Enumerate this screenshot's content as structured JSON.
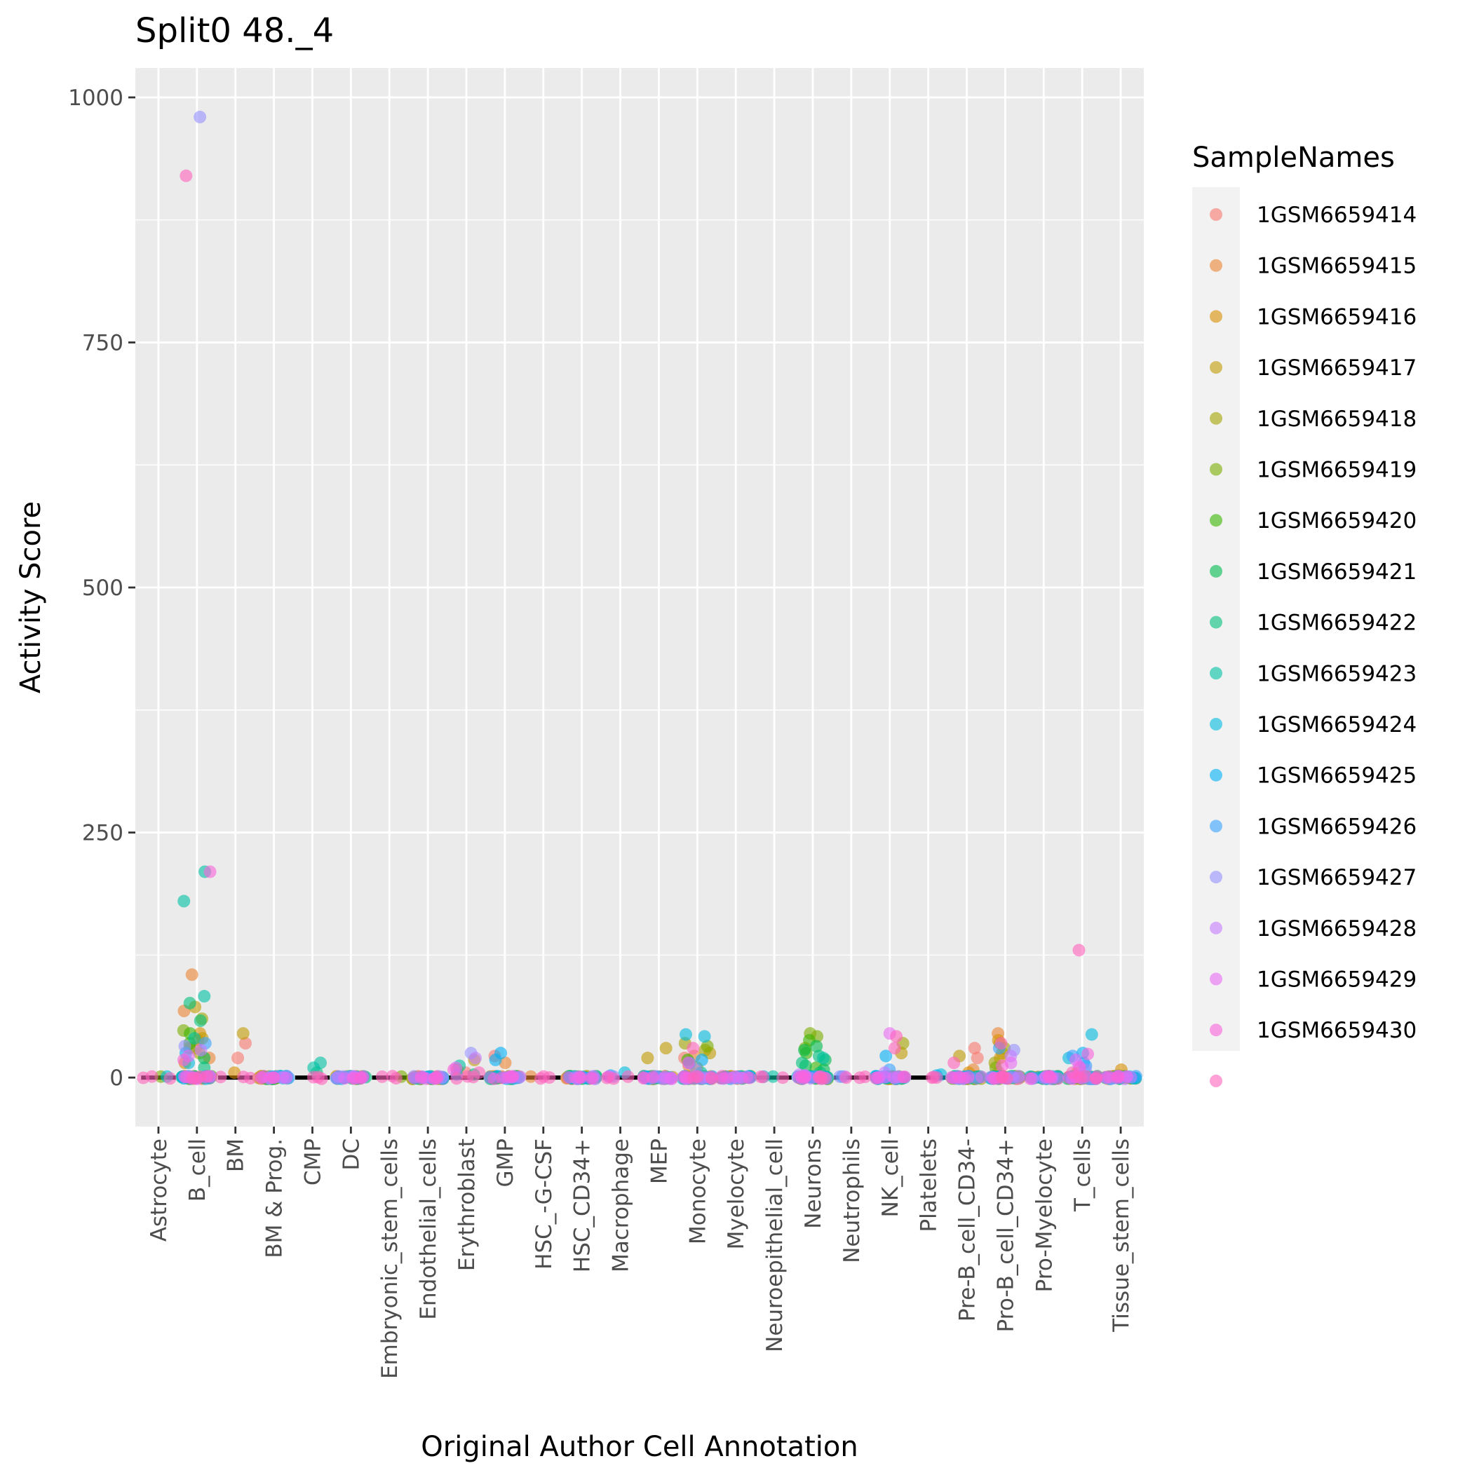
{
  "chart_data": {
    "type": "scatter",
    "title": "Split0 48._4",
    "xlabel": "Original Author Cell Annotation",
    "ylabel": "Activity Score",
    "ylim": [
      -50,
      1030
    ],
    "yticks": [
      0,
      250,
      500,
      750,
      1000
    ],
    "grid": true,
    "legend_title": "SampleNames",
    "legend_position": "right",
    "categories": [
      "Astrocyte",
      "B_cell",
      "BM",
      "BM & Prog.",
      "CMP",
      "DC",
      "Embryonic_stem_cells",
      "Endothelial_cells",
      "Erythroblast",
      "GMP",
      "HSC_-G-CSF",
      "HSC_CD34+",
      "Macrophage",
      "MEP",
      "Monocyte",
      "Myelocyte",
      "Neuroepithelial_cell",
      "Neurons",
      "Neutrophils",
      "NK_cell",
      "Platelets",
      "Pre-B_cell_CD34-",
      "Pro-B_cell_CD34+",
      "Pro-Myelocyte",
      "T_cells",
      "Tissue_stem_cells"
    ],
    "series": [
      {
        "name": "1GSM6659414",
        "color": "#F8766D",
        "points": [
          [
            "B_cell",
            30
          ],
          [
            "BM",
            35
          ],
          [
            "BM",
            20
          ],
          [
            "Erythroblast",
            5
          ],
          [
            "GMP",
            22
          ],
          [
            "Pre-B_cell_CD34-",
            30
          ],
          [
            "Pre-B_cell_CD34-",
            20
          ],
          [
            "Pro-B_cell_CD34+",
            5
          ],
          [
            "Monocyte",
            20
          ],
          [
            "Myelocyte",
            1
          ]
        ]
      },
      {
        "name": "1GSM6659415",
        "color": "#EA8331",
        "points": [
          [
            "B_cell",
            105
          ],
          [
            "B_cell",
            68
          ],
          [
            "B_cell",
            20
          ],
          [
            "GMP",
            15
          ],
          [
            "HSC_-G-CSF",
            1
          ],
          [
            "Monocyte",
            22
          ],
          [
            "Monocyte",
            12
          ],
          [
            "Myelocyte",
            1
          ],
          [
            "Pro-B_cell_CD34+",
            45
          ],
          [
            "Pre-B_cell_CD34-",
            8
          ],
          [
            "T_cells",
            5
          ]
        ]
      },
      {
        "name": "1GSM6659416",
        "color": "#D89000",
        "points": [
          [
            "B_cell",
            45
          ],
          [
            "B_cell",
            38
          ],
          [
            "B_cell",
            15
          ],
          [
            "BM",
            5
          ],
          [
            "Erythroblast",
            8
          ],
          [
            "Monocyte",
            10
          ],
          [
            "Pro-B_cell_CD34+",
            20
          ],
          [
            "Pro-B_cell_CD34+",
            38
          ],
          [
            "Tissue_stem_cells",
            8
          ],
          [
            "Pre-B_cell_CD34-",
            5
          ]
        ]
      },
      {
        "name": "1GSM6659417",
        "color": "#C09B00",
        "points": [
          [
            "BM",
            45
          ],
          [
            "B_cell",
            72
          ],
          [
            "B_cell",
            40
          ],
          [
            "MEP",
            30
          ],
          [
            "MEP",
            20
          ],
          [
            "Monocyte",
            25
          ],
          [
            "Erythroblast",
            18
          ],
          [
            "NK_cell",
            25
          ],
          [
            "Pre-B_cell_CD34-",
            22
          ],
          [
            "Pro-B_cell_CD34+",
            35
          ],
          [
            "Pro-B_cell_CD34+",
            25
          ]
        ]
      },
      {
        "name": "1GSM6659418",
        "color": "#A3A500",
        "points": [
          [
            "B_cell",
            60
          ],
          [
            "B_cell",
            25
          ],
          [
            "Monocyte",
            35
          ],
          [
            "Monocyte",
            28
          ],
          [
            "NK_cell",
            35
          ],
          [
            "Pro-B_cell_CD34+",
            15
          ],
          [
            "Pro-B_cell_CD34+",
            30
          ],
          [
            "Tissue_stem_cells",
            2
          ]
        ]
      },
      {
        "name": "1GSM6659419",
        "color": "#7CAE00",
        "points": [
          [
            "Astrocyte",
            1
          ],
          [
            "B_cell",
            48
          ],
          [
            "B_cell",
            30
          ],
          [
            "Embryonic_stem_cells",
            1
          ],
          [
            "HSC_CD34+",
            1
          ],
          [
            "Neurons",
            45
          ],
          [
            "Neurons",
            42
          ],
          [
            "Monocyte",
            32
          ],
          [
            "Neurons",
            30
          ],
          [
            "Pro-B_cell_CD34+",
            10
          ]
        ]
      },
      {
        "name": "1GSM6659420",
        "color": "#39B600",
        "points": [
          [
            "B_cell",
            35
          ],
          [
            "B_cell",
            45
          ],
          [
            "Neurons",
            38
          ],
          [
            "Neurons",
            25
          ],
          [
            "Neurons",
            10
          ],
          [
            "Monocyte",
            18
          ]
        ]
      },
      {
        "name": "1GSM6659421",
        "color": "#00BB4E",
        "points": [
          [
            "B_cell",
            20
          ],
          [
            "Neurons",
            32
          ],
          [
            "Neurons",
            28
          ],
          [
            "Neurons",
            18
          ],
          [
            "Neurons",
            12
          ],
          [
            "Neurons",
            8
          ]
        ]
      },
      {
        "name": "1GSM6659422",
        "color": "#00BF7D",
        "points": [
          [
            "B_cell",
            58
          ],
          [
            "B_cell",
            76
          ],
          [
            "B_cell",
            10
          ],
          [
            "CMP",
            5
          ],
          [
            "Neurons",
            22
          ],
          [
            "Neurons",
            15
          ],
          [
            "Neurons",
            5
          ],
          [
            "Erythroblast",
            3
          ]
        ]
      },
      {
        "name": "1GSM6659423",
        "color": "#00C1A3",
        "points": [
          [
            "B_cell",
            210
          ],
          [
            "B_cell",
            180
          ],
          [
            "B_cell",
            83
          ],
          [
            "B_cell",
            40
          ],
          [
            "CMP",
            15
          ],
          [
            "CMP",
            10
          ],
          [
            "Neurons",
            20
          ],
          [
            "Erythroblast",
            12
          ],
          [
            "Neuroepithelial_cell",
            1
          ],
          [
            "Monocyte",
            5
          ]
        ]
      },
      {
        "name": "1GSM6659424",
        "color": "#00BAE0",
        "points": [
          [
            "Astrocyte",
            1
          ],
          [
            "B_cell",
            15
          ],
          [
            "Monocyte",
            44
          ],
          [
            "Monocyte",
            42
          ],
          [
            "Macrophage",
            5
          ],
          [
            "Neuroepithelial_cell",
            1
          ],
          [
            "Platelets",
            3
          ],
          [
            "T_cells",
            44
          ],
          [
            "T_cells",
            20
          ],
          [
            "Tissue_stem_cells",
            1
          ]
        ]
      },
      {
        "name": "1GSM6659425",
        "color": "#00B0F6",
        "points": [
          [
            "B_cell",
            25
          ],
          [
            "GMP",
            25
          ],
          [
            "GMP",
            18
          ],
          [
            "Monocyte",
            18
          ],
          [
            "NK_cell",
            22
          ],
          [
            "T_cells",
            25
          ],
          [
            "T_cells",
            15
          ],
          [
            "Platelets",
            2
          ],
          [
            "Macrophage",
            2
          ],
          [
            "Neutrophils",
            1
          ]
        ]
      },
      {
        "name": "1GSM6659426",
        "color": "#35A2FF",
        "points": [
          [
            "B_cell",
            35
          ],
          [
            "DC",
            1
          ],
          [
            "Erythroblast",
            3
          ],
          [
            "Monocyte",
            15
          ],
          [
            "NK_cell",
            8
          ],
          [
            "T_cells",
            22
          ],
          [
            "T_cells",
            12
          ],
          [
            "Pro-B_cell_CD34+",
            30
          ]
        ]
      },
      {
        "name": "1GSM6659427",
        "color": "#9590FF",
        "points": [
          [
            "B_cell",
            980
          ],
          [
            "B_cell",
            32
          ],
          [
            "DC",
            1
          ],
          [
            "Erythroblast",
            25
          ],
          [
            "Macrophage",
            1
          ],
          [
            "Monocyte",
            8
          ],
          [
            "Neurons",
            2
          ],
          [
            "Neutrophils",
            1
          ],
          [
            "Pro-B_cell_CD34+",
            28
          ],
          [
            "T_cells",
            8
          ]
        ]
      },
      {
        "name": "1GSM6659428",
        "color": "#C77CFF",
        "points": [
          [
            "B_cell",
            28
          ],
          [
            "DC",
            1
          ],
          [
            "Erythroblast",
            20
          ],
          [
            "Macrophage",
            1
          ],
          [
            "Neurons",
            3
          ],
          [
            "NK_cell",
            5
          ],
          [
            "Pro-B_cell_CD34+",
            22
          ],
          [
            "T_cells",
            12
          ],
          [
            "Neutrophils",
            1
          ]
        ]
      },
      {
        "name": "1GSM6659429",
        "color": "#E76BF3",
        "points": [
          [
            "B_cell",
            22
          ],
          [
            "NK_cell",
            45
          ],
          [
            "Neurons",
            2
          ],
          [
            "T_cells",
            18
          ],
          [
            "Pro-B_cell_CD34+",
            15
          ],
          [
            "Macrophage",
            1
          ],
          [
            "Erythroblast",
            10
          ]
        ]
      },
      {
        "name": "1GSM6659430",
        "color": "#FA62DB",
        "points": [
          [
            "B_cell",
            210
          ],
          [
            "B_cell",
            18
          ],
          [
            "Endothelial_cells",
            1
          ],
          [
            "T_cells",
            24
          ],
          [
            "T_cells",
            10
          ],
          [
            "Pro-B_cell_CD34+",
            12
          ],
          [
            "Monocyte",
            15
          ],
          [
            "Erythroblast",
            8
          ]
        ]
      },
      {
        "name": "",
        "color": "#FF62BC",
        "points": [
          [
            "B_cell",
            920
          ],
          [
            "NK_cell",
            42
          ],
          [
            "NK_cell",
            30
          ],
          [
            "T_cells",
            130
          ],
          [
            "T_cells",
            5
          ],
          [
            "Monocyte",
            30
          ],
          [
            "Pro-B_cell_CD34+",
            35
          ],
          [
            "Pre-B_cell_CD34-",
            15
          ],
          [
            "Erythroblast",
            5
          ]
        ]
      }
    ]
  }
}
